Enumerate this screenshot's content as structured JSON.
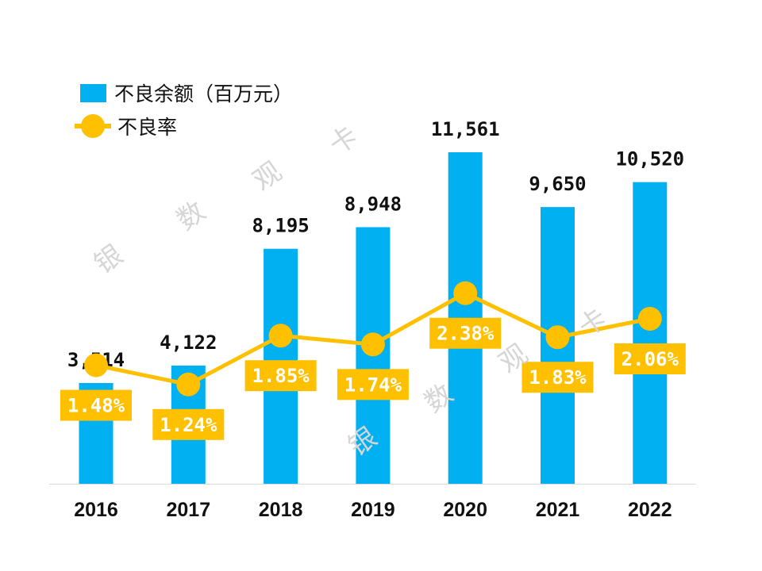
{
  "chart_data": {
    "type": "bar+line",
    "categories": [
      "2016",
      "2017",
      "2018",
      "2019",
      "2020",
      "2021",
      "2022"
    ],
    "series": [
      {
        "name": "不良余额（百万元）",
        "type": "bar",
        "color": "#00B0F0",
        "values": [
          3514,
          4122,
          8195,
          8948,
          11561,
          9650,
          10520
        ],
        "labels": [
          "3,514",
          "4,122",
          "8,195",
          "8,948",
          "11,561",
          "9,650",
          "10,520"
        ]
      },
      {
        "name": "不良率",
        "type": "line",
        "color": "#FFC000",
        "values": [
          1.48,
          1.24,
          1.85,
          1.74,
          2.38,
          1.83,
          2.06
        ],
        "labels": [
          "1.48%",
          "1.24%",
          "1.85%",
          "1.74%",
          "2.38%",
          "1.83%",
          "2.06%"
        ]
      }
    ],
    "title": "",
    "xlabel": "",
    "ylabel": "",
    "ylim_bar": [
      0,
      11561
    ],
    "ylim_line": [
      0,
      4.14
    ],
    "grid": false,
    "legend_position": "top-left"
  },
  "watermark": [
    "银",
    "数",
    "观",
    "卡"
  ]
}
